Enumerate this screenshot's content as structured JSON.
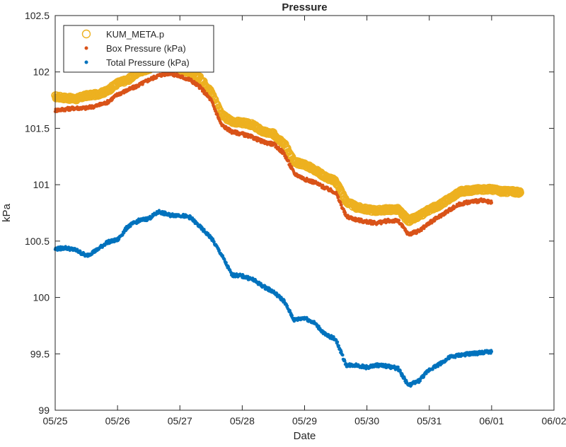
{
  "chart_data": {
    "type": "scatter",
    "title": "Pressure",
    "xlabel": "Date",
    "ylabel": "kPa",
    "x_ticks": [
      "05/25",
      "05/26",
      "05/27",
      "05/28",
      "05/29",
      "05/30",
      "05/31",
      "06/01",
      "06/02"
    ],
    "y_ticks": [
      "99",
      "99.5",
      "100",
      "100.5",
      "101",
      "101.5",
      "102",
      "102.5"
    ],
    "xlim": [
      "05/25",
      "06/02"
    ],
    "ylim": [
      99,
      102.5
    ],
    "grid": false,
    "legend_position": "top-left",
    "series": [
      {
        "name": "KUM_META.p",
        "marker": "circle-open",
        "color": "#EDB120",
        "points": [
          [
            "05/25 00:00",
            101.78
          ],
          [
            "05/25 04:00",
            101.77
          ],
          [
            "05/25 08:00",
            101.76
          ],
          [
            "05/25 12:00",
            101.79
          ],
          [
            "05/25 16:00",
            101.8
          ],
          [
            "05/25 20:00",
            101.83
          ],
          [
            "05/26 00:00",
            101.9
          ],
          [
            "05/26 04:00",
            101.93
          ],
          [
            "05/26 08:00",
            102.0
          ],
          [
            "05/26 12:00",
            102.03
          ],
          [
            "05/26 16:00",
            102.06
          ],
          [
            "05/26 20:00",
            102.05
          ],
          [
            "05/27 00:00",
            102.02
          ],
          [
            "05/27 04:00",
            102.0
          ],
          [
            "05/27 08:00",
            101.94
          ],
          [
            "05/27 12:00",
            101.82
          ],
          [
            "05/27 16:00",
            101.62
          ],
          [
            "05/27 20:00",
            101.56
          ],
          [
            "05/28 00:00",
            101.55
          ],
          [
            "05/28 04:00",
            101.53
          ],
          [
            "05/28 08:00",
            101.47
          ],
          [
            "05/28 12:00",
            101.45
          ],
          [
            "05/28 16:00",
            101.37
          ],
          [
            "05/28 20:00",
            101.2
          ],
          [
            "05/29 00:00",
            101.18
          ],
          [
            "05/29 04:00",
            101.13
          ],
          [
            "05/29 08:00",
            101.07
          ],
          [
            "05/29 12:00",
            101.03
          ],
          [
            "05/29 16:00",
            100.85
          ],
          [
            "05/29 20:00",
            100.8
          ],
          [
            "05/30 00:00",
            100.78
          ],
          [
            "05/30 04:00",
            100.77
          ],
          [
            "05/30 08:00",
            100.78
          ],
          [
            "05/30 12:00",
            100.78
          ],
          [
            "05/30 16:00",
            100.68
          ],
          [
            "05/30 20:00",
            100.72
          ],
          [
            "05/31 00:00",
            100.78
          ],
          [
            "05/31 04:00",
            100.82
          ],
          [
            "05/31 08:00",
            100.88
          ],
          [
            "05/31 12:00",
            100.94
          ],
          [
            "05/31 16:00",
            100.95
          ],
          [
            "05/31 20:00",
            100.96
          ],
          [
            "06/01 00:00",
            100.96
          ],
          [
            "06/01 04:00",
            100.94
          ],
          [
            "06/01 08:00",
            100.94
          ],
          [
            "06/01 11:00",
            100.93
          ]
        ]
      },
      {
        "name": "Box Pressure (kPa)",
        "marker": "dot",
        "color": "#D95319",
        "points": [
          [
            "05/25 00:00",
            101.66
          ],
          [
            "05/25 04:00",
            101.67
          ],
          [
            "05/25 08:00",
            101.68
          ],
          [
            "05/25 12:00",
            101.68
          ],
          [
            "05/25 16:00",
            101.7
          ],
          [
            "05/25 20:00",
            101.73
          ],
          [
            "05/26 00:00",
            101.8
          ],
          [
            "05/26 04:00",
            101.84
          ],
          [
            "05/26 08:00",
            101.88
          ],
          [
            "05/26 12:00",
            101.93
          ],
          [
            "05/26 16:00",
            101.97
          ],
          [
            "05/26 20:00",
            101.99
          ],
          [
            "05/27 00:00",
            101.96
          ],
          [
            "05/27 04:00",
            101.93
          ],
          [
            "05/27 08:00",
            101.86
          ],
          [
            "05/27 12:00",
            101.75
          ],
          [
            "05/27 16:00",
            101.53
          ],
          [
            "05/27 20:00",
            101.47
          ],
          [
            "05/28 00:00",
            101.45
          ],
          [
            "05/28 04:00",
            101.42
          ],
          [
            "05/28 08:00",
            101.38
          ],
          [
            "05/28 12:00",
            101.36
          ],
          [
            "05/28 16:00",
            101.28
          ],
          [
            "05/28 20:00",
            101.1
          ],
          [
            "05/29 00:00",
            101.05
          ],
          [
            "05/29 04:00",
            101.02
          ],
          [
            "05/29 08:00",
            100.97
          ],
          [
            "05/29 12:00",
            100.93
          ],
          [
            "05/29 16:00",
            100.72
          ],
          [
            "05/29 20:00",
            100.69
          ],
          [
            "05/30 00:00",
            100.67
          ],
          [
            "05/30 04:00",
            100.66
          ],
          [
            "05/30 08:00",
            100.68
          ],
          [
            "05/30 12:00",
            100.68
          ],
          [
            "05/30 16:00",
            100.56
          ],
          [
            "05/30 20:00",
            100.59
          ],
          [
            "05/31 00:00",
            100.66
          ],
          [
            "05/31 04:00",
            100.72
          ],
          [
            "05/31 08:00",
            100.78
          ],
          [
            "05/31 12:00",
            100.83
          ],
          [
            "05/31 16:00",
            100.85
          ],
          [
            "05/31 20:00",
            100.86
          ],
          [
            "06/01 00:00",
            100.84
          ]
        ]
      },
      {
        "name": "Total Pressure (kPa)",
        "marker": "dot",
        "color": "#0072BD",
        "points": [
          [
            "05/25 00:00",
            100.43
          ],
          [
            "05/25 04:00",
            100.44
          ],
          [
            "05/25 08:00",
            100.42
          ],
          [
            "05/25 12:00",
            100.37
          ],
          [
            "05/25 16:00",
            100.42
          ],
          [
            "05/25 20:00",
            100.49
          ],
          [
            "05/26 00:00",
            100.51
          ],
          [
            "05/26 04:00",
            100.63
          ],
          [
            "05/26 08:00",
            100.68
          ],
          [
            "05/26 12:00",
            100.7
          ],
          [
            "05/26 16:00",
            100.76
          ],
          [
            "05/26 20:00",
            100.73
          ],
          [
            "05/27 00:00",
            100.73
          ],
          [
            "05/27 04:00",
            100.71
          ],
          [
            "05/27 08:00",
            100.62
          ],
          [
            "05/27 12:00",
            100.53
          ],
          [
            "05/27 16:00",
            100.38
          ],
          [
            "05/27 20:00",
            100.2
          ],
          [
            "05/28 00:00",
            100.19
          ],
          [
            "05/28 04:00",
            100.16
          ],
          [
            "05/28 08:00",
            100.1
          ],
          [
            "05/28 12:00",
            100.05
          ],
          [
            "05/28 16:00",
            99.97
          ],
          [
            "05/28 20:00",
            99.8
          ],
          [
            "05/29 00:00",
            99.82
          ],
          [
            "05/29 04:00",
            99.77
          ],
          [
            "05/29 08:00",
            99.67
          ],
          [
            "05/29 12:00",
            99.63
          ],
          [
            "05/29 16:00",
            99.4
          ],
          [
            "05/29 20:00",
            99.4
          ],
          [
            "05/30 00:00",
            99.38
          ],
          [
            "05/30 04:00",
            99.4
          ],
          [
            "05/30 08:00",
            99.39
          ],
          [
            "05/30 12:00",
            99.37
          ],
          [
            "05/30 16:00",
            99.22
          ],
          [
            "05/30 20:00",
            99.26
          ],
          [
            "05/31 00:00",
            99.36
          ],
          [
            "05/31 04:00",
            99.41
          ],
          [
            "05/31 08:00",
            99.47
          ],
          [
            "05/31 12:00",
            99.49
          ],
          [
            "05/31 16:00",
            99.5
          ],
          [
            "05/31 20:00",
            99.51
          ],
          [
            "06/01 00:00",
            99.52
          ]
        ]
      }
    ]
  }
}
